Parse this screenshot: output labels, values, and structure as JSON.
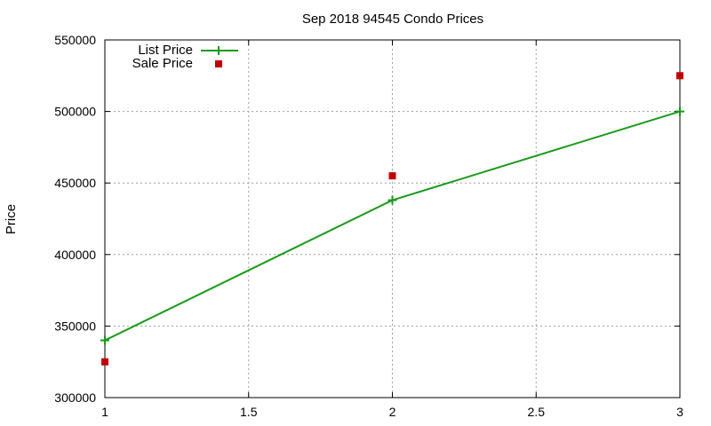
{
  "chart_data": {
    "type": "line",
    "title": "Sep 2018 94545 Condo Prices",
    "xlabel": "",
    "ylabel": "Price",
    "xlim": [
      1,
      3
    ],
    "ylim": [
      300000,
      550000
    ],
    "x_ticks": [
      1,
      1.5,
      2,
      2.5,
      3
    ],
    "x_tick_labels": [
      "1",
      "1.5",
      "2",
      "2.5",
      "3"
    ],
    "y_ticks": [
      300000,
      350000,
      400000,
      450000,
      500000,
      550000
    ],
    "y_tick_labels": [
      "300000",
      "350000",
      "400000",
      "450000",
      "500000",
      "550000"
    ],
    "grid": true,
    "legend_position": "top-left",
    "series": [
      {
        "name": "List Price",
        "style": "line-with-plus-markers",
        "color": "#1a9a1a",
        "x": [
          1,
          2,
          3
        ],
        "y": [
          340000,
          438000,
          500000
        ]
      },
      {
        "name": "Sale Price",
        "style": "square-markers",
        "color": "#c00000",
        "x": [
          1,
          2,
          3
        ],
        "y": [
          325000,
          455000,
          525000
        ]
      }
    ]
  }
}
